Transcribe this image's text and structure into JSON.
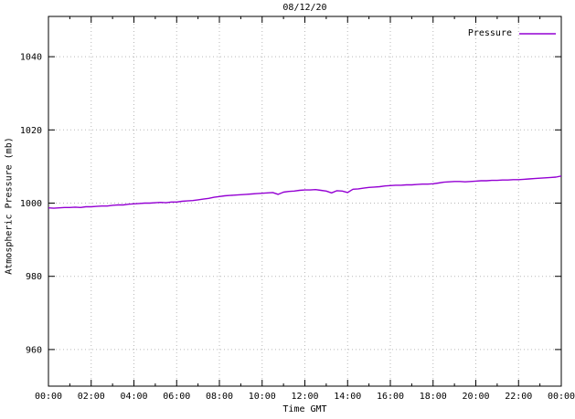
{
  "title": "08/12/20",
  "legend": {
    "label": "Pressure"
  },
  "colors": {
    "line": "#9400d3",
    "grid": "#b8b8b8",
    "axis": "#000000",
    "background": "#ffffff"
  },
  "chart_data": {
    "type": "line",
    "title": "08/12/20",
    "xlabel": "Time GMT",
    "ylabel": "Atmospheric Pressure (mb)",
    "xlim_hours": [
      0,
      24
    ],
    "ylim": [
      950,
      1051
    ],
    "x_tick_hours": [
      0,
      2,
      4,
      6,
      8,
      10,
      12,
      14,
      16,
      18,
      20,
      22,
      24
    ],
    "x_tick_labels": [
      "00:00",
      "02:00",
      "04:00",
      "06:00",
      "08:00",
      "10:00",
      "12:00",
      "14:00",
      "16:00",
      "18:00",
      "20:00",
      "22:00",
      "00:00"
    ],
    "x_minor_step_hours": 1,
    "y_ticks": [
      960,
      980,
      1000,
      1020,
      1040
    ],
    "grid": true,
    "legend_position": "top-right",
    "series": [
      {
        "name": "Pressure",
        "x0": 0,
        "dx": 0.25,
        "values": [
          998.7,
          998.6,
          998.7,
          998.8,
          998.8,
          998.9,
          998.8,
          999.0,
          999.0,
          999.1,
          999.2,
          999.2,
          999.4,
          999.5,
          999.5,
          999.7,
          999.8,
          999.9,
          1000.0,
          1000.0,
          1000.1,
          1000.2,
          1000.1,
          1000.3,
          1000.3,
          1000.5,
          1000.6,
          1000.7,
          1000.9,
          1001.1,
          1001.3,
          1001.6,
          1001.8,
          1002.0,
          1002.1,
          1002.2,
          1002.3,
          1002.4,
          1002.5,
          1002.6,
          1002.7,
          1002.8,
          1002.9,
          1002.4,
          1003.0,
          1003.2,
          1003.3,
          1003.5,
          1003.6,
          1003.6,
          1003.7,
          1003.5,
          1003.3,
          1002.8,
          1003.4,
          1003.3,
          1002.9,
          1003.8,
          1003.9,
          1004.1,
          1004.3,
          1004.4,
          1004.5,
          1004.7,
          1004.8,
          1004.9,
          1004.9,
          1005.0,
          1005.0,
          1005.1,
          1005.2,
          1005.2,
          1005.3,
          1005.5,
          1005.7,
          1005.8,
          1005.9,
          1005.9,
          1005.8,
          1005.9,
          1006.0,
          1006.1,
          1006.1,
          1006.2,
          1006.2,
          1006.3,
          1006.3,
          1006.4,
          1006.4,
          1006.5,
          1006.6,
          1006.7,
          1006.8,
          1006.9,
          1007.0,
          1007.1,
          1007.4
        ]
      }
    ]
  }
}
